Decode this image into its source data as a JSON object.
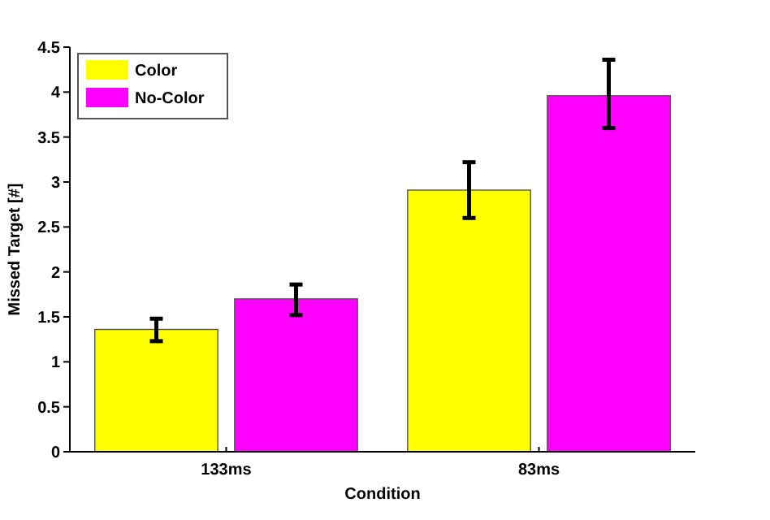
{
  "chart_data": {
    "type": "bar",
    "xlabel": "Condition",
    "ylabel": "Missed Target [#]",
    "categories": [
      "133ms",
      "83ms"
    ],
    "series": [
      {
        "name": "Color",
        "color": "#ffff00",
        "values": [
          1.36,
          2.91
        ],
        "errors": [
          [
            1.23,
            1.48
          ],
          [
            2.6,
            3.22
          ]
        ]
      },
      {
        "name": "No-Color",
        "color": "#ff00ff",
        "values": [
          1.7,
          3.96
        ],
        "errors": [
          [
            1.52,
            1.86
          ],
          [
            3.6,
            4.36
          ]
        ]
      }
    ],
    "ylim": [
      0,
      4.5
    ],
    "yticks": [
      0,
      0.5,
      1,
      1.5,
      2,
      2.5,
      3,
      3.5,
      4,
      4.5
    ],
    "legend": "top left",
    "grid": false
  }
}
